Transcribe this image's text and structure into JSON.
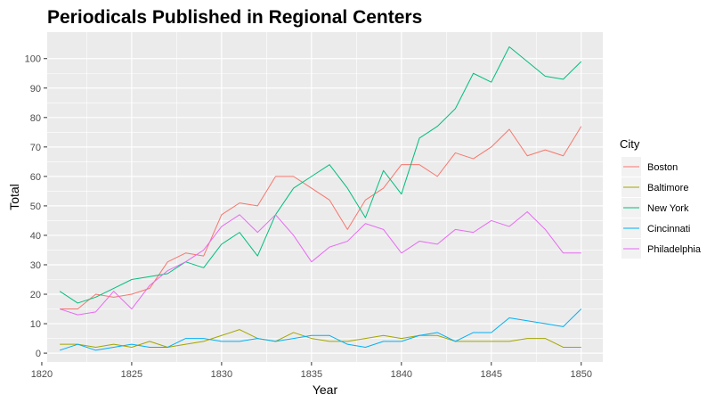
{
  "chart_data": {
    "type": "line",
    "title": "Periodicals Published in Regional Centers",
    "xlabel": "Year",
    "ylabel": "Total",
    "xlim": [
      1820.3,
      1851.2
    ],
    "ylim": [
      -3,
      109
    ],
    "x_ticks": [
      1820,
      1825,
      1830,
      1835,
      1840,
      1845,
      1850
    ],
    "y_ticks": [
      0,
      10,
      20,
      30,
      40,
      50,
      60,
      70,
      80,
      90,
      100
    ],
    "grid": true,
    "legend_title": "City",
    "legend_position": "right",
    "x": [
      1821,
      1822,
      1823,
      1824,
      1825,
      1826,
      1827,
      1828,
      1829,
      1830,
      1831,
      1832,
      1833,
      1834,
      1835,
      1836,
      1837,
      1838,
      1839,
      1840,
      1841,
      1842,
      1843,
      1844,
      1845,
      1846,
      1847,
      1848,
      1849,
      1850
    ],
    "series": [
      {
        "name": "Boston",
        "color": "#F8766D",
        "values": [
          15,
          15,
          20,
          19,
          20,
          22,
          31,
          34,
          33,
          47,
          51,
          50,
          60,
          60,
          56,
          52,
          42,
          52,
          56,
          64,
          64,
          60,
          68,
          66,
          70,
          76,
          67,
          69,
          67,
          77
        ]
      },
      {
        "name": "Baltimore",
        "color": "#A3A500",
        "values": [
          3,
          3,
          2,
          3,
          2,
          4,
          2,
          3,
          4,
          6,
          8,
          5,
          4,
          7,
          5,
          4,
          4,
          5,
          6,
          5,
          6,
          6,
          4,
          4,
          4,
          4,
          5,
          5,
          2,
          2
        ]
      },
      {
        "name": "New York",
        "color": "#00BF7D",
        "values": [
          21,
          17,
          19,
          22,
          25,
          26,
          27,
          31,
          29,
          37,
          41,
          33,
          47,
          56,
          60,
          64,
          56,
          46,
          62,
          54,
          73,
          77,
          83,
          95,
          92,
          104,
          99,
          94,
          93,
          99
        ]
      },
      {
        "name": "Cincinnati",
        "color": "#00B0F6",
        "values": [
          1,
          3,
          1,
          2,
          3,
          2,
          2,
          5,
          5,
          4,
          4,
          5,
          4,
          5,
          6,
          6,
          3,
          2,
          4,
          4,
          6,
          7,
          4,
          7,
          7,
          12,
          11,
          10,
          9,
          15
        ]
      },
      {
        "name": "Philadelphia",
        "color": "#E76BF3",
        "values": [
          15,
          13,
          14,
          21,
          15,
          23,
          28,
          31,
          35,
          43,
          47,
          41,
          47,
          40,
          31,
          36,
          38,
          44,
          42,
          34,
          38,
          37,
          42,
          41,
          45,
          43,
          48,
          42,
          34,
          34
        ]
      }
    ]
  }
}
